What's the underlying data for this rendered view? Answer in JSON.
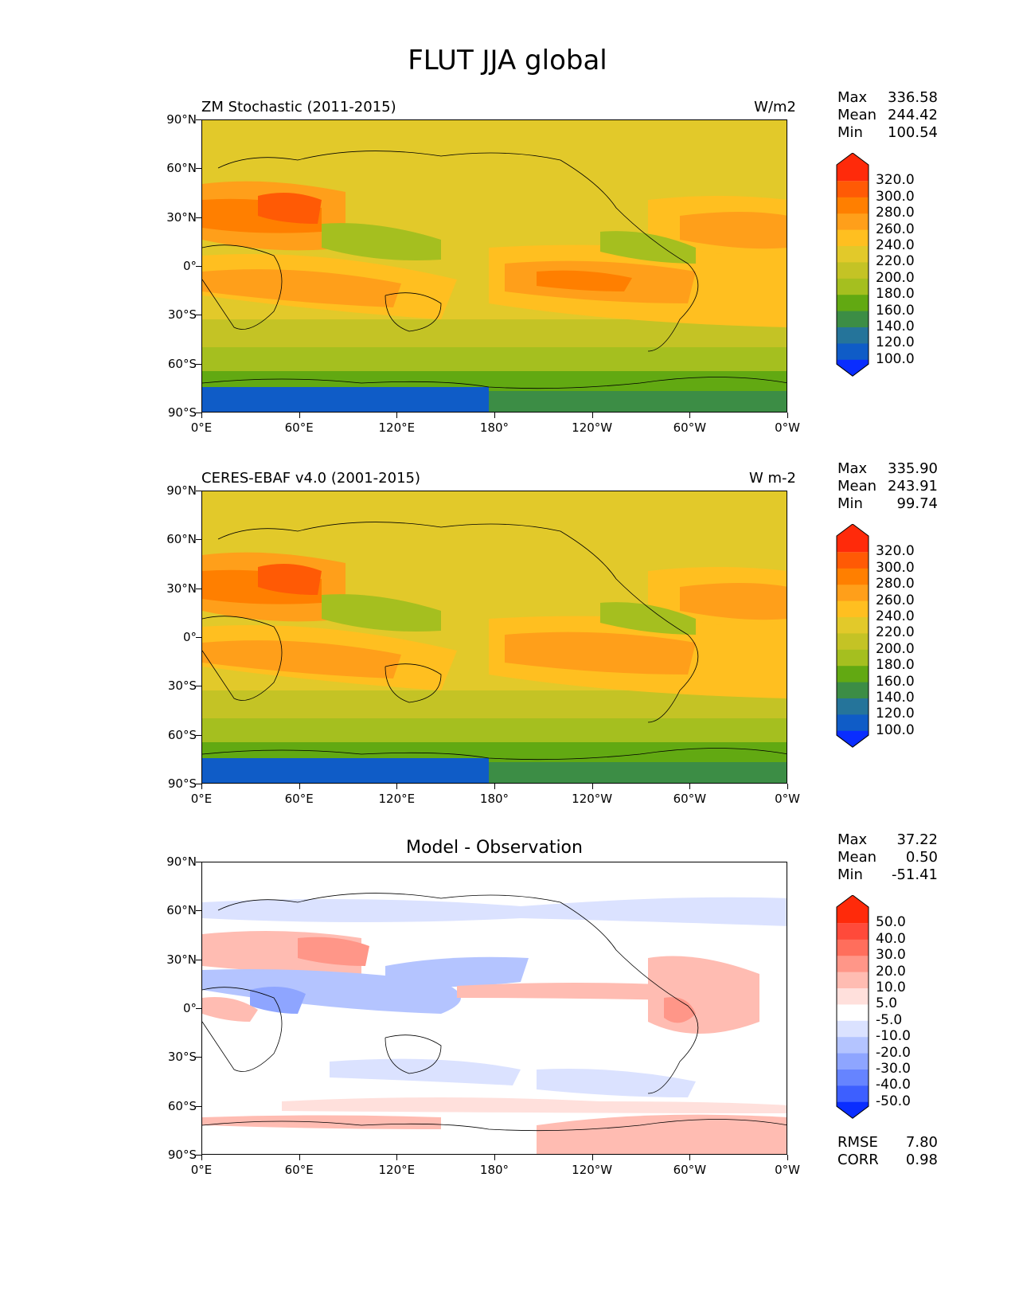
{
  "title": "FLUT JJA global",
  "axes": {
    "lat_labels": [
      "90°N",
      "60°N",
      "30°N",
      "0°",
      "30°S",
      "60°S",
      "90°S"
    ],
    "lon_labels": [
      "0°E",
      "60°E",
      "120°E",
      "180°",
      "120°W",
      "60°W",
      "0°W"
    ]
  },
  "panels": [
    {
      "left_title": "ZM Stochastic (2011-2015)",
      "right_title": "W/m2",
      "center_title": "",
      "stats": {
        "max_label": "Max",
        "max": "336.58",
        "mean_label": "Mean",
        "mean": "244.42",
        "min_label": "Min",
        "min": "100.54"
      },
      "levels": [
        "320.0",
        "300.0",
        "280.0",
        "260.0",
        "240.0",
        "220.0",
        "200.0",
        "180.0",
        "160.0",
        "140.0",
        "120.0",
        "100.0"
      ],
      "colors": [
        "#ff2a0a",
        "#ff5a05",
        "#ff7f00",
        "#ff9f1a",
        "#ffbf20",
        "#e2c92a",
        "#c4c325",
        "#a5bf1f",
        "#62a912",
        "#3c8d45",
        "#25749a",
        "#0f5cc7",
        "#0a2dff"
      ]
    },
    {
      "left_title": "CERES-EBAF v4.0 (2001-2015)",
      "right_title": "W m-2",
      "center_title": "",
      "stats": {
        "max_label": "Max",
        "max": "335.90",
        "mean_label": "Mean",
        "mean": "243.91",
        "min_label": "Min",
        "min": "99.74"
      },
      "levels": [
        "320.0",
        "300.0",
        "280.0",
        "260.0",
        "240.0",
        "220.0",
        "200.0",
        "180.0",
        "160.0",
        "140.0",
        "120.0",
        "100.0"
      ],
      "colors": [
        "#ff2a0a",
        "#ff5a05",
        "#ff7f00",
        "#ff9f1a",
        "#ffbf20",
        "#e2c92a",
        "#c4c325",
        "#a5bf1f",
        "#62a912",
        "#3c8d45",
        "#25749a",
        "#0f5cc7",
        "#0a2dff"
      ]
    },
    {
      "left_title": "",
      "right_title": "",
      "center_title": "Model - Observation",
      "stats": {
        "max_label": "Max",
        "max": "37.22",
        "mean_label": "Mean",
        "mean": "0.50",
        "min_label": "Min",
        "min": "-51.41"
      },
      "levels": [
        "50.0",
        "40.0",
        "30.0",
        "20.0",
        "10.0",
        "5.0",
        "-5.0",
        "-10.0",
        "-20.0",
        "-30.0",
        "-40.0",
        "-50.0"
      ],
      "colors": [
        "#ff2a0a",
        "#ff4a3a",
        "#ff6e5c",
        "#ff9688",
        "#ffbcb2",
        "#ffe0dc",
        "#ffffff",
        "#dbe2ff",
        "#b4c4ff",
        "#8ea5ff",
        "#6684ff",
        "#3d5fff",
        "#0a2dff"
      ],
      "rmse_label": "RMSE",
      "rmse": "7.80",
      "corr_label": "CORR",
      "corr": "0.98"
    }
  ]
}
